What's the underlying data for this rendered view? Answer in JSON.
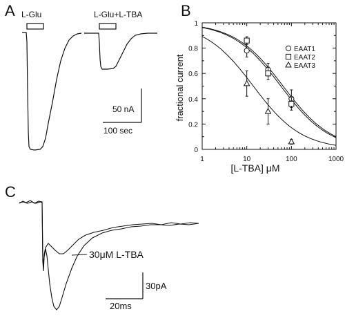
{
  "panels": {
    "A": {
      "letter": "A",
      "label_left": "L-Glu",
      "label_right": "L-Glu+L-TBA",
      "scale_y": "50 nA",
      "scale_x": "100 sec"
    },
    "B": {
      "letter": "B",
      "chart_data": {
        "type": "scatter",
        "title": "",
        "xlabel": "[L-TBA] μM",
        "ylabel": "fractional current",
        "x_scale": "log",
        "xlim": [
          1,
          1000
        ],
        "ylim": [
          0,
          1
        ],
        "x_ticks": [
          "1",
          "10",
          "100",
          "1000"
        ],
        "y_ticks": [
          "0",
          "0.2",
          "0.4",
          "0.6",
          "0.8",
          "1"
        ],
        "legend_position": "right",
        "series": [
          {
            "name": "EAAT1",
            "marker": "circle",
            "x": [
              10,
              30,
              100
            ],
            "y": [
              0.78,
              0.63,
              0.4
            ],
            "err": [
              0.05,
              0.05,
              0.07
            ],
            "fit_ic50": 65,
            "fit_hill": 0.8
          },
          {
            "name": "EAAT2",
            "marker": "square",
            "x": [
              10,
              30,
              100
            ],
            "y": [
              0.86,
              0.6,
              0.36
            ],
            "err": [
              0.03,
              0.05,
              0.05
            ],
            "fit_ic50": 58,
            "fit_hill": 0.8
          },
          {
            "name": "EAAT3",
            "marker": "triangle",
            "x": [
              10,
              30,
              100
            ],
            "y": [
              0.52,
              0.3,
              0.06
            ],
            "err": [
              0.1,
              0.1,
              0.02
            ],
            "fit_ic50": 14,
            "fit_hill": 0.8
          }
        ]
      }
    },
    "C": {
      "letter": "C",
      "annotation": "30μM L-TBA",
      "scale_y": "30pA",
      "scale_x": "20ms"
    }
  }
}
